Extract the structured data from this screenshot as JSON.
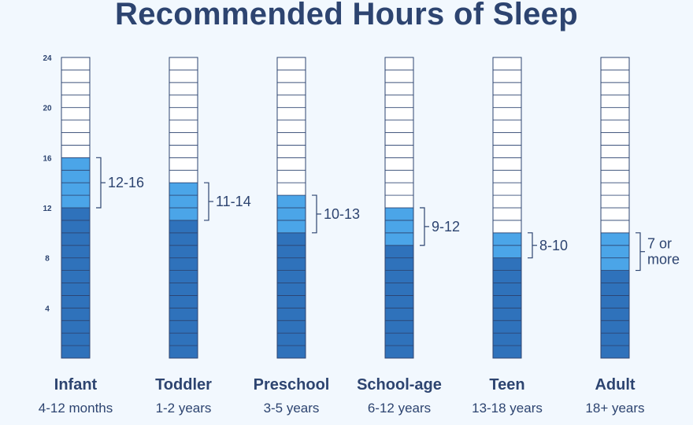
{
  "title": "Recommended Hours of Sleep",
  "chart_data": {
    "type": "bar",
    "y_ticks": [
      "4",
      "8",
      "12",
      "16",
      "20",
      "24"
    ],
    "ylim": [
      0,
      24
    ],
    "groups": [
      {
        "name": "Infant",
        "age": "4-12 months",
        "min_hours": 12,
        "max_hours": 16,
        "range_label": [
          "12-16"
        ]
      },
      {
        "name": "Toddler",
        "age": "1-2 years",
        "min_hours": 11,
        "max_hours": 14,
        "range_label": [
          "11-14"
        ]
      },
      {
        "name": "Preschool",
        "age": "3-5 years",
        "min_hours": 10,
        "max_hours": 13,
        "range_label": [
          "10-13"
        ]
      },
      {
        "name": "School-age",
        "age": "6-12 years",
        "min_hours": 9,
        "max_hours": 12,
        "range_label": [
          "9-12"
        ]
      },
      {
        "name": "Teen",
        "age": "13-18 years",
        "min_hours": 8,
        "max_hours": 10,
        "range_label": [
          "8-10"
        ]
      },
      {
        "name": "Adult",
        "age": "18+ years",
        "min_hours": 7,
        "max_hours": 10,
        "range_label": [
          "7 or",
          "more"
        ]
      }
    ],
    "colors": {
      "base": "#2f72bb",
      "recommended": "#4ba5e8",
      "empty": "#ffffff",
      "grid": "#2d4470",
      "text": "#2d4470"
    }
  }
}
